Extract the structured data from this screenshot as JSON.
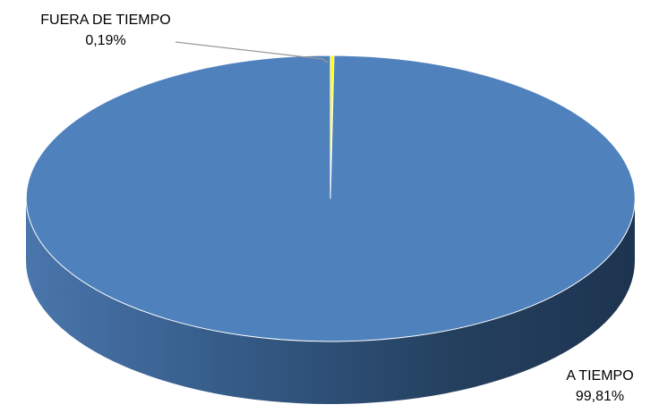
{
  "chart_data": {
    "type": "pie",
    "style": "3d",
    "slices": [
      {
        "label": "FUERA DE TIEMPO",
        "value": 0.19,
        "display": "0,19%",
        "color": "#ffff00"
      },
      {
        "label": "A TIEMPO",
        "value": 99.81,
        "display": "99,81%",
        "color": "#4f81bd"
      }
    ],
    "legend": "none",
    "data_labels": "outside with leader line for small slice"
  }
}
